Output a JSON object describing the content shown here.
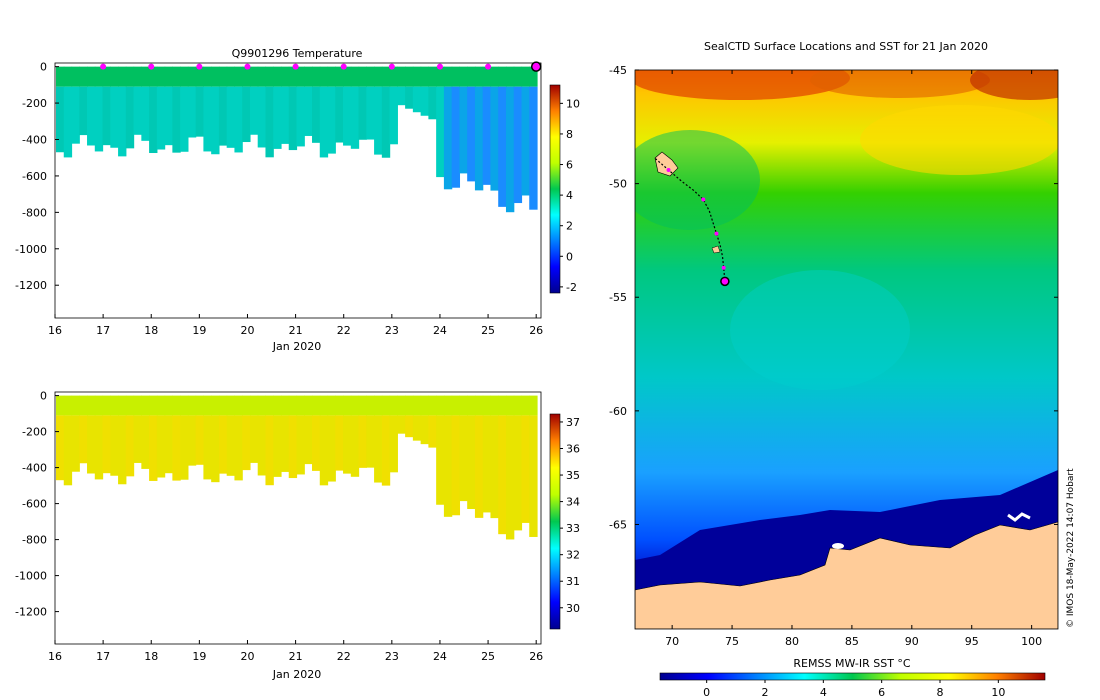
{
  "chart_data": [
    {
      "type": "heatmap",
      "title": "Q9901296  Temperature",
      "xlabel": "Jan 2020",
      "ylabel": "",
      "x_ticks": [
        16,
        17,
        18,
        19,
        20,
        21,
        22,
        23,
        24,
        25,
        26
      ],
      "xlim": [
        16,
        26.1
      ],
      "y_ticks": [
        0,
        -200,
        -400,
        -600,
        -800,
        -1000,
        -1200
      ],
      "ylim": [
        -1380,
        20
      ],
      "colorbar": {
        "min": -2.4,
        "max": 11.2,
        "ticks": [
          -2,
          0,
          2,
          4,
          6,
          8,
          10
        ]
      },
      "marker_days": [
        17,
        18,
        19,
        20,
        21,
        22,
        23,
        24,
        25
      ],
      "last_profile_day": 26
    },
    {
      "type": "heatmap",
      "title": "",
      "xlabel": "Jan 2020",
      "ylabel": "",
      "x_ticks": [
        16,
        17,
        18,
        19,
        20,
        21,
        22,
        23,
        24,
        25,
        26
      ],
      "xlim": [
        16,
        26.1
      ],
      "y_ticks": [
        0,
        -200,
        -400,
        -600,
        -800,
        -1000,
        -1200
      ],
      "ylim": [
        -1380,
        20
      ],
      "colorbar": {
        "min": 29.2,
        "max": 37.3,
        "ticks": [
          30,
          31,
          32,
          33,
          34,
          35,
          36,
          37
        ]
      }
    },
    {
      "type": "heatmap",
      "title": "SealCTD Surface Locations and SST for 21 Jan 2020",
      "xlabel": "",
      "ylabel": "",
      "x_ticks": [
        70,
        75,
        80,
        85,
        90,
        95,
        100
      ],
      "xlim": [
        66.9,
        102.2
      ],
      "y_ticks": [
        -45,
        -50,
        -55,
        -60,
        -65
      ],
      "ylim": [
        -69.6,
        -45
      ],
      "colorbar_label": "REMSS MW-IR SST °C",
      "colorbar": {
        "min": -1.6,
        "max": 11.6,
        "ticks": [
          0,
          2,
          4,
          6,
          8,
          10
        ]
      },
      "track": [
        {
          "lon": 68.6,
          "lat": -48.9
        },
        {
          "lon": 69.7,
          "lat": -49.4
        },
        {
          "lon": 70.8,
          "lat": -49.9
        },
        {
          "lon": 71.8,
          "lat": -50.3
        },
        {
          "lon": 72.6,
          "lat": -50.7
        },
        {
          "lon": 73.1,
          "lat": -51.2
        },
        {
          "lon": 73.4,
          "lat": -51.7
        },
        {
          "lon": 73.7,
          "lat": -52.2
        },
        {
          "lon": 74.0,
          "lat": -52.7
        },
        {
          "lon": 74.2,
          "lat": -53.2
        },
        {
          "lon": 74.3,
          "lat": -53.7
        },
        {
          "lon": 74.4,
          "lat": -54.3
        }
      ],
      "credit": "© IMOS 18-May-2022 14:07 Hobart"
    }
  ],
  "colors": {
    "marker": "#ff00ff",
    "land": "#ffcc99",
    "axis": "#000000"
  }
}
